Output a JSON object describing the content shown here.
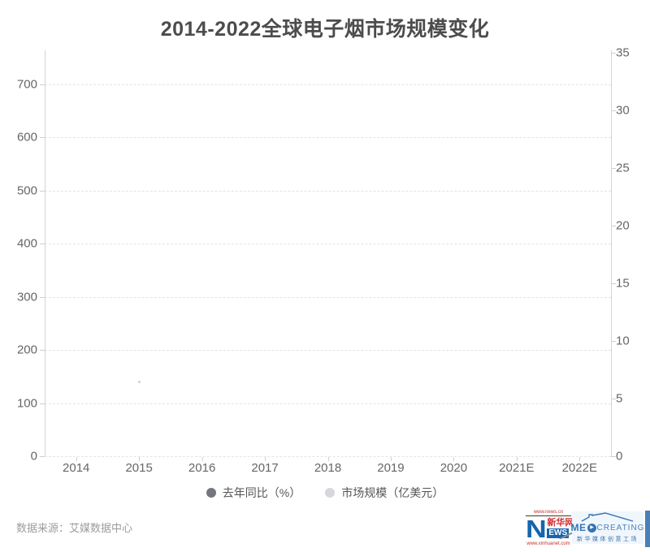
{
  "chart_data": {
    "type": "line",
    "title": "2014-2022全球电子烟市场规模变化",
    "categories": [
      "2014",
      "2015",
      "2016",
      "2017",
      "2018",
      "2019",
      "2020",
      "2021E",
      "2022E"
    ],
    "series": [
      {
        "name": "去年同比（%）",
        "yaxis": "left",
        "color": "#73767a",
        "values": []
      },
      {
        "name": "市场规模（亿美元）",
        "yaxis": "right",
        "color": "#d5d7dc",
        "values": []
      }
    ],
    "series_plotted": false,
    "left_axis": {
      "ticks": [
        "0",
        "100",
        "200",
        "300",
        "400",
        "500",
        "600",
        "700"
      ]
    },
    "right_axis": {
      "ticks": [
        "0",
        "5",
        "10",
        "15",
        "20",
        "25",
        "30",
        "35"
      ],
      "ylim": [
        0,
        35
      ]
    },
    "grid": "horizontal-dashed",
    "legend_position": "bottom"
  },
  "footer": {
    "source": "数据来源：艾媒数据中心"
  },
  "logos": {
    "xinhua": {
      "top_url": "www.news.cn",
      "n": "N",
      "cn": "新华网",
      "ews": "EWS",
      "bottom_url": "www.xinhuanet.com"
    },
    "medcreating": {
      "me": "ME",
      "play_icon": "▶",
      "creating": "CREATING",
      "subtitle": "新华媒体创意工场"
    }
  },
  "colors": {
    "title": "#4c4c4c",
    "axis_label": "#666666",
    "gridline": "#e4e4e4",
    "xinhua_blue": "#1565ad",
    "xinhua_red": "#c53030",
    "med_blue": "#3474b5"
  }
}
